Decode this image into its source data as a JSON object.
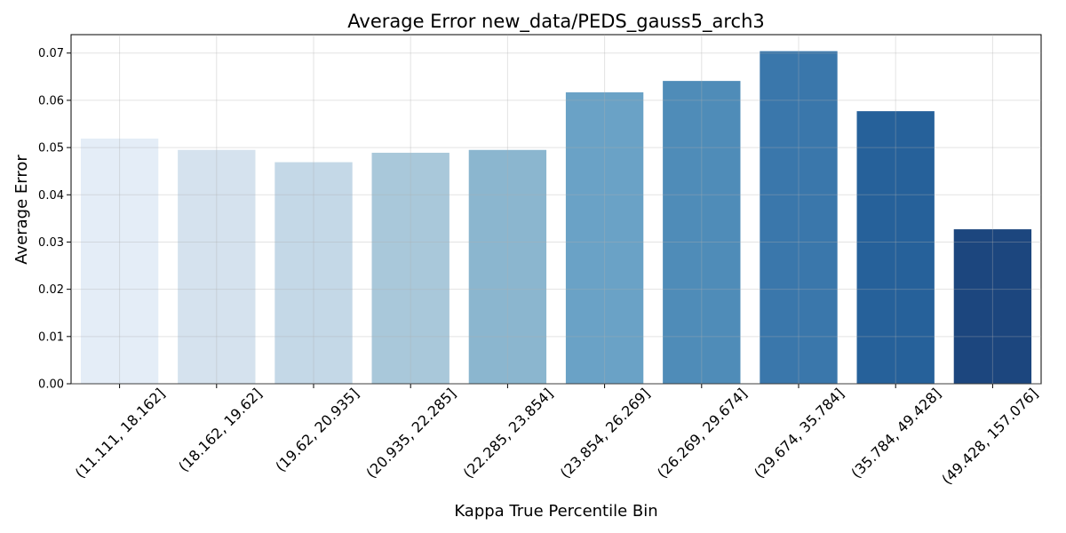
{
  "chart_data": {
    "type": "bar",
    "title": "Average Error new_data/PEDS_gauss5_arch3",
    "xlabel": "Kappa True Percentile Bin",
    "ylabel": "Average Error",
    "categories": [
      "(11.111, 18.162]",
      "(18.162, 19.62]",
      "(19.62, 20.935]",
      "(20.935, 22.285]",
      "(22.285, 23.854]",
      "(23.854, 26.269]",
      "(26.269, 29.674]",
      "(29.674, 35.784]",
      "(35.784, 49.428]",
      "(49.428, 157.076]"
    ],
    "values": [
      0.0519,
      0.0495,
      0.0469,
      0.0489,
      0.0495,
      0.0617,
      0.0641,
      0.0704,
      0.0577,
      0.0327
    ],
    "colors": [
      "#e4edf7",
      "#d5e2ee",
      "#c4d8e7",
      "#a9c8da",
      "#8bb6cf",
      "#6aa2c6",
      "#4f8cb8",
      "#3a77ab",
      "#26619a",
      "#1c467e"
    ],
    "ylim": [
      0,
      0.0739
    ],
    "yticks": [
      "0.00",
      "0.01",
      "0.02",
      "0.03",
      "0.04",
      "0.05",
      "0.06",
      "0.07"
    ],
    "grid": true
  }
}
